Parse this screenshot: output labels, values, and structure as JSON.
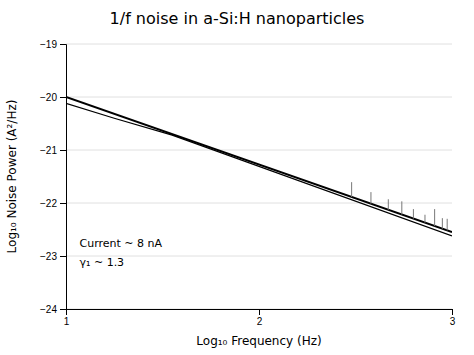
{
  "chart_data": {
    "type": "line",
    "title": "1/f noise in a-Si:H nanoparticles",
    "x_label": "Log₁₀ Frequency (Hz)",
    "y_label": "Log₁₀ Noise Power (A²/Hz)",
    "xlim": [
      1,
      3
    ],
    "ylim": [
      -24,
      -19
    ],
    "xticks": [
      1,
      2,
      3
    ],
    "yticks": [
      -24,
      -23,
      -22,
      -21,
      -20,
      -19
    ],
    "grid": true,
    "series": [
      {
        "type": "line",
        "color": "#000000",
        "x": [
          1.0,
          3.0
        ],
        "values": [
          -20.0,
          -22.55
        ]
      },
      {
        "type": "line",
        "color": "#000000",
        "x": [
          1.0,
          1.25,
          1.55,
          3.0
        ],
        "values": [
          -20.12,
          -20.4,
          -20.72,
          -22.62
        ]
      },
      {
        "type": "spike",
        "color": "#777777",
        "x": [
          2.48,
          2.58,
          2.67,
          2.74,
          2.8,
          2.86,
          2.91,
          2.95,
          2.975
        ],
        "low": [
          -21.887,
          -22.0145,
          -22.12925,
          -22.2185,
          -22.295,
          -22.3715,
          -22.43525,
          -22.48625,
          -22.518125
        ],
        "values": [
          -21.607,
          -21.7945,
          -21.92925,
          -21.9685,
          -22.115,
          -22.2215,
          -22.11525,
          -22.28625,
          -22.298125
        ]
      }
    ],
    "annotations": [
      {
        "text": "Current ~ 8 nA",
        "x": 1.07,
        "y": -22.65
      },
      {
        "text": "γ₁ ~ 1.3",
        "x": 1.07,
        "y": -23.0
      }
    ]
  }
}
